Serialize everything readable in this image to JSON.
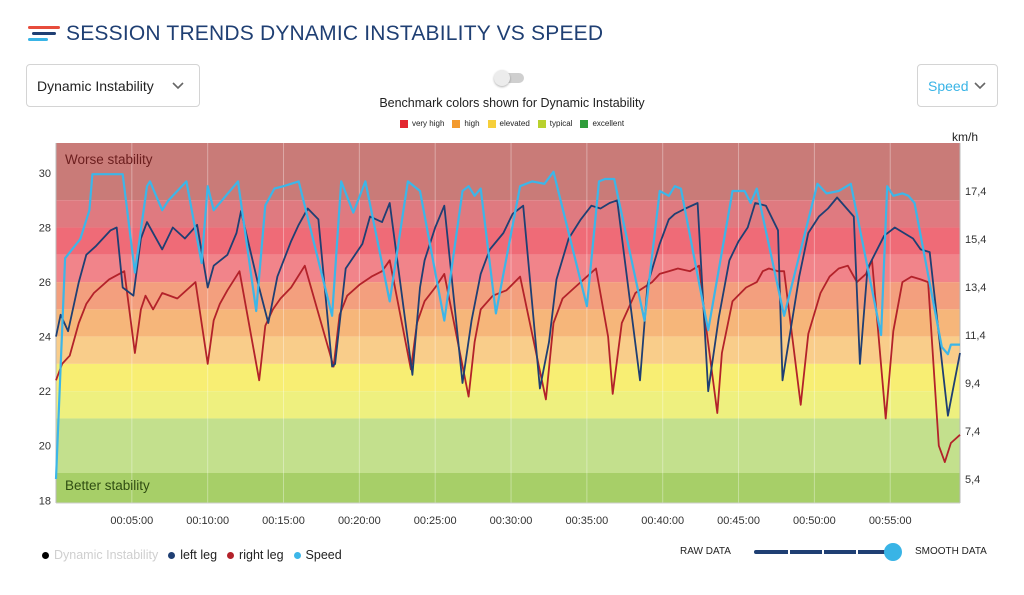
{
  "header": {
    "title": "SESSION TRENDS DYNAMIC INSTABILITY VS SPEED",
    "logo_colors": [
      "#e74c3c",
      "#1f3f73",
      "#39b4e6"
    ]
  },
  "controls": {
    "metric_select": "Dynamic Instability",
    "secondary_select": "Speed",
    "benchmark_caption": "Benchmark colors shown for Dynamic Instability",
    "benchmark_toggle_on": false
  },
  "benchmarks": [
    {
      "label": "very high",
      "color": "#e3262f"
    },
    {
      "label": "high",
      "color": "#f39a2e"
    },
    {
      "label": "elevated",
      "color": "#f6cf3a"
    },
    {
      "label": "typical",
      "color": "#b9d12d"
    },
    {
      "label": "excellent",
      "color": "#2f9d3a"
    }
  ],
  "chart_data": {
    "type": "line",
    "title": "Session Trends Dynamic Instability vs Speed",
    "unit_right": "km/h",
    "top_annotation": "Worse stability",
    "bottom_annotation": "Better stability",
    "ylim_left": [
      17.9,
      31.1
    ],
    "ylim_right": [
      4.4,
      19.4
    ],
    "xlim_minutes": [
      0,
      59.6
    ],
    "left_ticks": [
      {
        "value": 18,
        "label": "18"
      },
      {
        "value": 20,
        "label": "20"
      },
      {
        "value": 22,
        "label": "22"
      },
      {
        "value": 24,
        "label": "24"
      },
      {
        "value": 26,
        "label": "26"
      },
      {
        "value": 28,
        "label": "28"
      },
      {
        "value": 30,
        "label": "30"
      }
    ],
    "right_ticks": [
      {
        "value": 5.4,
        "label": "5,4"
      },
      {
        "value": 7.4,
        "label": "7,4"
      },
      {
        "value": 9.4,
        "label": "9,4"
      },
      {
        "value": 11.4,
        "label": "11,4"
      },
      {
        "value": 13.4,
        "label": "13,4"
      },
      {
        "value": 15.4,
        "label": "15,4"
      },
      {
        "value": 17.4,
        "label": "17,4"
      }
    ],
    "x_ticks": [
      {
        "minutes": 5,
        "label": "00:05:00"
      },
      {
        "minutes": 10,
        "label": "00:10:00"
      },
      {
        "minutes": 15,
        "label": "00:15:00"
      },
      {
        "minutes": 20,
        "label": "00:20:00"
      },
      {
        "minutes": 25,
        "label": "00:25:00"
      },
      {
        "minutes": 30,
        "label": "00:30:00"
      },
      {
        "minutes": 35,
        "label": "00:35:00"
      },
      {
        "minutes": 40,
        "label": "00:40:00"
      },
      {
        "minutes": 45,
        "label": "00:45:00"
      },
      {
        "minutes": 50,
        "label": "00:50:00"
      },
      {
        "minutes": 55,
        "label": "00:55:00"
      }
    ],
    "bands": [
      {
        "from": 29,
        "to": 31.1,
        "color": "#c97b78"
      },
      {
        "from": 28,
        "to": 29,
        "color": "#df7a80"
      },
      {
        "from": 27,
        "to": 28,
        "color": "#ef6b77"
      },
      {
        "from": 26,
        "to": 27,
        "color": "#f1848a"
      },
      {
        "from": 25,
        "to": 26,
        "color": "#f39f7e"
      },
      {
        "from": 24,
        "to": 25,
        "color": "#f6b67a"
      },
      {
        "from": 23,
        "to": 24,
        "color": "#f9cd8a"
      },
      {
        "from": 22,
        "to": 23,
        "color": "#f8ee73"
      },
      {
        "from": 21,
        "to": 22,
        "color": "#eef07f"
      },
      {
        "from": 19,
        "to": 21,
        "color": "#c3e08d"
      },
      {
        "from": 17.9,
        "to": 19,
        "color": "#a7cf68"
      }
    ],
    "series": [
      {
        "name": "Speed",
        "axis": "right",
        "color": "#3cb6e8",
        "x": [
          0,
          0.6,
          1.6,
          2.2,
          2.4,
          4.4,
          5.2,
          6.0,
          6.2,
          7.0,
          7.4,
          8.6,
          9.6,
          10.0,
          10.4,
          12.0,
          13.2,
          13.8,
          14.4,
          15.0,
          16.0,
          18.2,
          18.8,
          19.6,
          20.4,
          22.0,
          23.0,
          23.2,
          23.8,
          24.0,
          25.6,
          26.8,
          27.2,
          27.6,
          28.0,
          29.0,
          30.6,
          31.4,
          32.2,
          32.8,
          35.0,
          35.8,
          36.2,
          36.8,
          38.8,
          39.8,
          40.4,
          40.8,
          41.2,
          43.0,
          44.6,
          45.4,
          45.8,
          46.2,
          48.0,
          50.2,
          50.8,
          51.6,
          52.4,
          54.4,
          54.8,
          55.2,
          55.8,
          56.2,
          56.6,
          58.4,
          58.8,
          59.0,
          59.6
        ],
        "values": [
          5.4,
          14.6,
          15.4,
          16.6,
          18.1,
          18.1,
          14.0,
          17.6,
          17.8,
          16.6,
          17.0,
          17.8,
          14.4,
          17.6,
          16.6,
          17.8,
          12.4,
          16.8,
          17.5,
          17.6,
          17.8,
          12.2,
          17.8,
          16.5,
          17.8,
          12.8,
          17.0,
          17.8,
          17.5,
          17.4,
          12.0,
          17.4,
          17.6,
          17.2,
          17.5,
          12.3,
          17.6,
          17.8,
          17.7,
          18.2,
          12.6,
          17.8,
          17.9,
          17.9,
          12.0,
          17.4,
          17.2,
          17.6,
          17.5,
          11.6,
          17.4,
          17.4,
          16.9,
          17.5,
          12.2,
          17.7,
          17.3,
          17.4,
          17.7,
          11.4,
          17.6,
          17.2,
          17.3,
          17.2,
          16.9,
          10.9,
          10.6,
          11.0,
          11.0
        ]
      },
      {
        "name": "left leg",
        "axis": "left",
        "color": "#1f3f73",
        "x": [
          0,
          0.3,
          0.8,
          1.5,
          2.0,
          2.6,
          3.6,
          4.0,
          4.4,
          5.1,
          5.6,
          6.0,
          7.0,
          7.7,
          8.5,
          9.3,
          10.0,
          10.4,
          11.3,
          11.9,
          12.2,
          13.3,
          14.0,
          14.6,
          15.5,
          16.0,
          16.6,
          17.3,
          18.2,
          18.4,
          19.1,
          20.2,
          20.7,
          21.5,
          22.0,
          23.5,
          24.0,
          24.3,
          25.0,
          25.6,
          26.8,
          27.4,
          28.0,
          28.6,
          29.5,
          30.1,
          30.8,
          31.9,
          32.5,
          33.0,
          33.8,
          34.6,
          35.3,
          35.9,
          36.5,
          37.0,
          38.5,
          39.0,
          39.8,
          40.4,
          40.8,
          41.5,
          42.3,
          43.0,
          43.7,
          44.4,
          45.0,
          45.6,
          46.1,
          46.8,
          47.6,
          47.9,
          49.0,
          49.6,
          50.3,
          50.9,
          51.5,
          52.6,
          53.0,
          53.5,
          54.6,
          55.3,
          56.5,
          57.0,
          57.6,
          58.5,
          58.8,
          59.6
        ],
        "values": [
          24.0,
          24.8,
          24.2,
          26.0,
          27.0,
          27.3,
          27.9,
          28.0,
          25.8,
          25.5,
          27.6,
          28.2,
          27.2,
          28.0,
          27.6,
          28.1,
          25.8,
          26.6,
          27.0,
          27.8,
          28.6,
          26.0,
          24.5,
          26.2,
          27.5,
          28.1,
          28.7,
          28.3,
          22.9,
          23.0,
          26.5,
          27.4,
          28.4,
          28.2,
          28.9,
          22.6,
          25.8,
          26.8,
          28.0,
          28.8,
          22.3,
          24.6,
          26.3,
          27.2,
          27.8,
          28.5,
          28.8,
          22.1,
          23.8,
          26.1,
          27.6,
          28.3,
          28.8,
          28.7,
          28.9,
          29.0,
          22.4,
          25.9,
          27.4,
          28.3,
          28.5,
          28.7,
          28.9,
          22.0,
          24.7,
          26.8,
          27.5,
          28.0,
          28.9,
          28.8,
          27.9,
          22.4,
          26.2,
          27.8,
          28.4,
          28.7,
          29.1,
          28.4,
          23.0,
          26.5,
          27.7,
          28.0,
          27.6,
          27.2,
          27.1,
          22.6,
          21.1,
          23.4
        ]
      },
      {
        "name": "right leg",
        "axis": "left",
        "color": "#b3222a",
        "x": [
          0,
          0.4,
          0.9,
          1.5,
          2.0,
          2.5,
          3.5,
          4.5,
          5.2,
          5.6,
          5.9,
          6.4,
          7.0,
          8.0,
          9.2,
          10.0,
          10.4,
          10.8,
          11.3,
          12.1,
          13.4,
          13.8,
          14.3,
          14.8,
          15.5,
          16.4,
          18.3,
          18.7,
          19.2,
          20.0,
          20.8,
          21.5,
          22.0,
          23.4,
          23.8,
          24.3,
          25.0,
          25.6,
          27.2,
          27.6,
          28.0,
          28.8,
          29.7,
          30.6,
          32.3,
          32.8,
          33.4,
          34.2,
          35.0,
          35.6,
          36.4,
          36.7,
          37.3,
          38.2,
          39.3,
          39.8,
          40.4,
          41.0,
          41.8,
          42.4,
          42.8,
          43.6,
          43.9,
          44.6,
          45.5,
          46.2,
          46.6,
          47.0,
          47.6,
          48.0,
          49.1,
          49.6,
          50.4,
          51.0,
          51.6,
          52.2,
          52.8,
          53.4,
          53.8,
          54.7,
          55.2,
          55.8,
          56.4,
          57.0,
          57.5,
          58.2,
          58.6,
          59.0,
          59.6
        ],
        "values": [
          22.4,
          23.0,
          23.3,
          24.5,
          25.2,
          25.6,
          26.1,
          26.4,
          23.4,
          25.0,
          25.5,
          25.0,
          25.6,
          25.4,
          26.0,
          23.0,
          24.6,
          25.2,
          25.7,
          26.4,
          22.4,
          24.4,
          25.0,
          25.4,
          25.8,
          26.6,
          22.9,
          24.8,
          25.5,
          25.9,
          26.2,
          26.4,
          26.8,
          22.8,
          24.5,
          25.3,
          25.8,
          26.3,
          21.8,
          23.8,
          25.0,
          25.5,
          25.7,
          26.2,
          21.7,
          24.5,
          25.4,
          25.8,
          26.2,
          26.5,
          24.0,
          21.9,
          24.5,
          25.6,
          26.0,
          26.3,
          26.4,
          26.5,
          26.4,
          26.6,
          24.6,
          21.2,
          23.4,
          25.3,
          25.8,
          26.0,
          26.4,
          26.5,
          26.4,
          26.4,
          21.5,
          24.1,
          25.6,
          26.2,
          26.5,
          26.6,
          26.0,
          26.3,
          26.8,
          21.0,
          24.2,
          26.0,
          26.2,
          26.1,
          26.0,
          20.0,
          19.4,
          20.1,
          20.4
        ]
      }
    ]
  },
  "legend": [
    {
      "label": "Dynamic Instability",
      "color": "#000000",
      "faded": true
    },
    {
      "label": "left leg",
      "color": "#1f3f73",
      "faded": false
    },
    {
      "label": "right leg",
      "color": "#b3222a",
      "faded": false
    },
    {
      "label": "Speed",
      "color": "#3cb6e8",
      "faded": false
    }
  ],
  "smoothing": {
    "raw_label": "RAW DATA",
    "smooth_label": "SMOOTH DATA",
    "level": 1.0
  }
}
